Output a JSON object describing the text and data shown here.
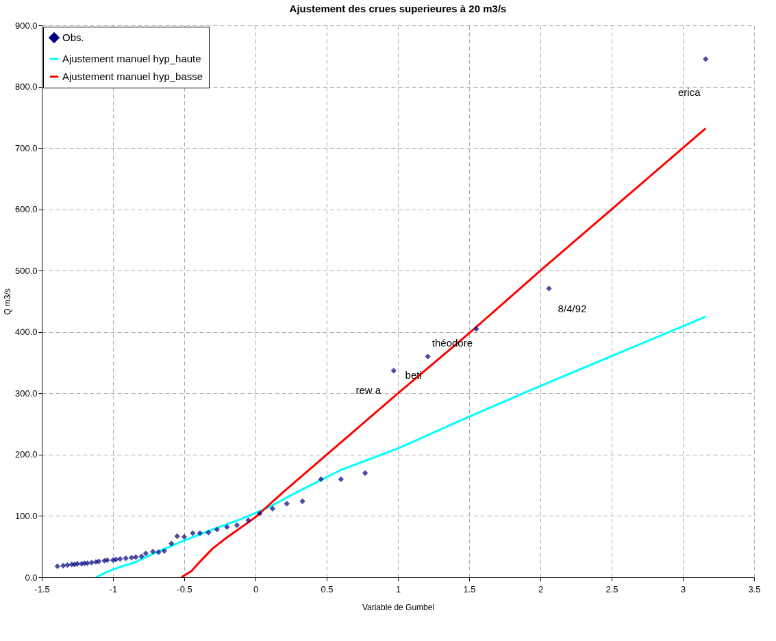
{
  "chart_data": {
    "type": "scatter",
    "title": "Ajustement des crues superieures à 20 m3/s",
    "xlabel": "Variable de Gumbel",
    "ylabel": "Q m3/s",
    "xlim": [
      -1.5,
      3.5
    ],
    "xticks": [
      -1.5,
      -1,
      -0.5,
      0,
      0.5,
      1,
      1.5,
      2,
      2.5,
      3,
      3.5
    ],
    "ylim": [
      0,
      900
    ],
    "yticks": [
      {
        "value": 0,
        "label": "0.0"
      },
      {
        "value": 100,
        "label": "100.0"
      },
      {
        "value": 200,
        "label": "200.0"
      },
      {
        "value": 300,
        "label": "300.0"
      },
      {
        "value": 400,
        "label": "400.0"
      },
      {
        "value": 500,
        "label": "500.0"
      },
      {
        "value": 600,
        "label": "600.0"
      },
      {
        "value": 700,
        "label": "700.0"
      },
      {
        "value": 800,
        "label": "800.0"
      },
      {
        "value": 900,
        "label": "900.0"
      }
    ],
    "grid": true,
    "legend": "top left",
    "line_style": "solid",
    "series": [
      {
        "name": "Obs.",
        "marker": "diamond",
        "color": "#000080",
        "x": [
          -1.39,
          -1.35,
          -1.32,
          -1.29,
          -1.27,
          -1.25,
          -1.22,
          -1.2,
          -1.18,
          -1.15,
          -1.12,
          -1.1,
          -1.06,
          -1.04,
          -1.0,
          -0.98,
          -0.95,
          -0.91,
          -0.87,
          -0.84,
          -0.8,
          -0.77,
          -0.72,
          -0.68,
          -0.64,
          -0.59,
          -0.55,
          -0.5,
          -0.44,
          -0.39,
          -0.33,
          -0.27,
          -0.2,
          -0.13,
          -0.05,
          0.03,
          0.12,
          0.22,
          0.33,
          0.46,
          0.6,
          0.77,
          0.97,
          1.21,
          1.55,
          2.06,
          3.16
        ],
        "values": [
          18,
          19,
          20,
          21,
          21,
          22,
          22,
          23,
          23,
          24,
          25,
          26,
          27,
          28,
          28,
          29,
          30,
          31,
          32,
          33,
          34,
          39,
          42,
          41,
          43,
          55,
          67,
          66,
          72,
          72,
          73,
          78,
          82,
          85,
          93,
          104,
          112,
          120,
          124,
          160,
          160,
          170,
          337,
          360,
          405,
          471,
          845
        ]
      },
      {
        "name": "Ajustement manuel hyp_haute",
        "type": "line",
        "color": "#00ffff",
        "x": [
          -1.12,
          -1.05,
          -0.95,
          -0.85,
          -0.75,
          -0.6,
          -0.5,
          -0.3,
          -0.1,
          0.1,
          0.3,
          0.6,
          1.0,
          1.5,
          2.0,
          3.16
        ],
        "values": [
          0,
          8,
          17,
          24,
          35,
          50,
          60,
          78,
          95,
          115,
          140,
          175,
          210,
          262,
          312,
          425
        ]
      },
      {
        "name": "Ajustement manuel hyp_basse",
        "type": "line",
        "color": "#ff0000",
        "x": [
          -0.52,
          -0.45,
          -0.4,
          -0.3,
          -0.2,
          0,
          0.2,
          0.45,
          0.75,
          1.0,
          1.5,
          2.0,
          3.16
        ],
        "values": [
          0,
          10,
          23,
          47,
          65,
          98,
          140,
          190,
          250,
          300,
          398,
          500,
          732
        ]
      }
    ],
    "annotations": [
      {
        "text": "erica",
        "x": 3.16,
        "y": 845
      },
      {
        "text": "8/4/92",
        "x": 2.06,
        "y": 471
      },
      {
        "text": "théodore",
        "x": 1.55,
        "y": 405
      },
      {
        "text": "beti",
        "x": 1.21,
        "y": 360
      },
      {
        "text": "rew a",
        "x": 0.97,
        "y": 337
      }
    ]
  }
}
